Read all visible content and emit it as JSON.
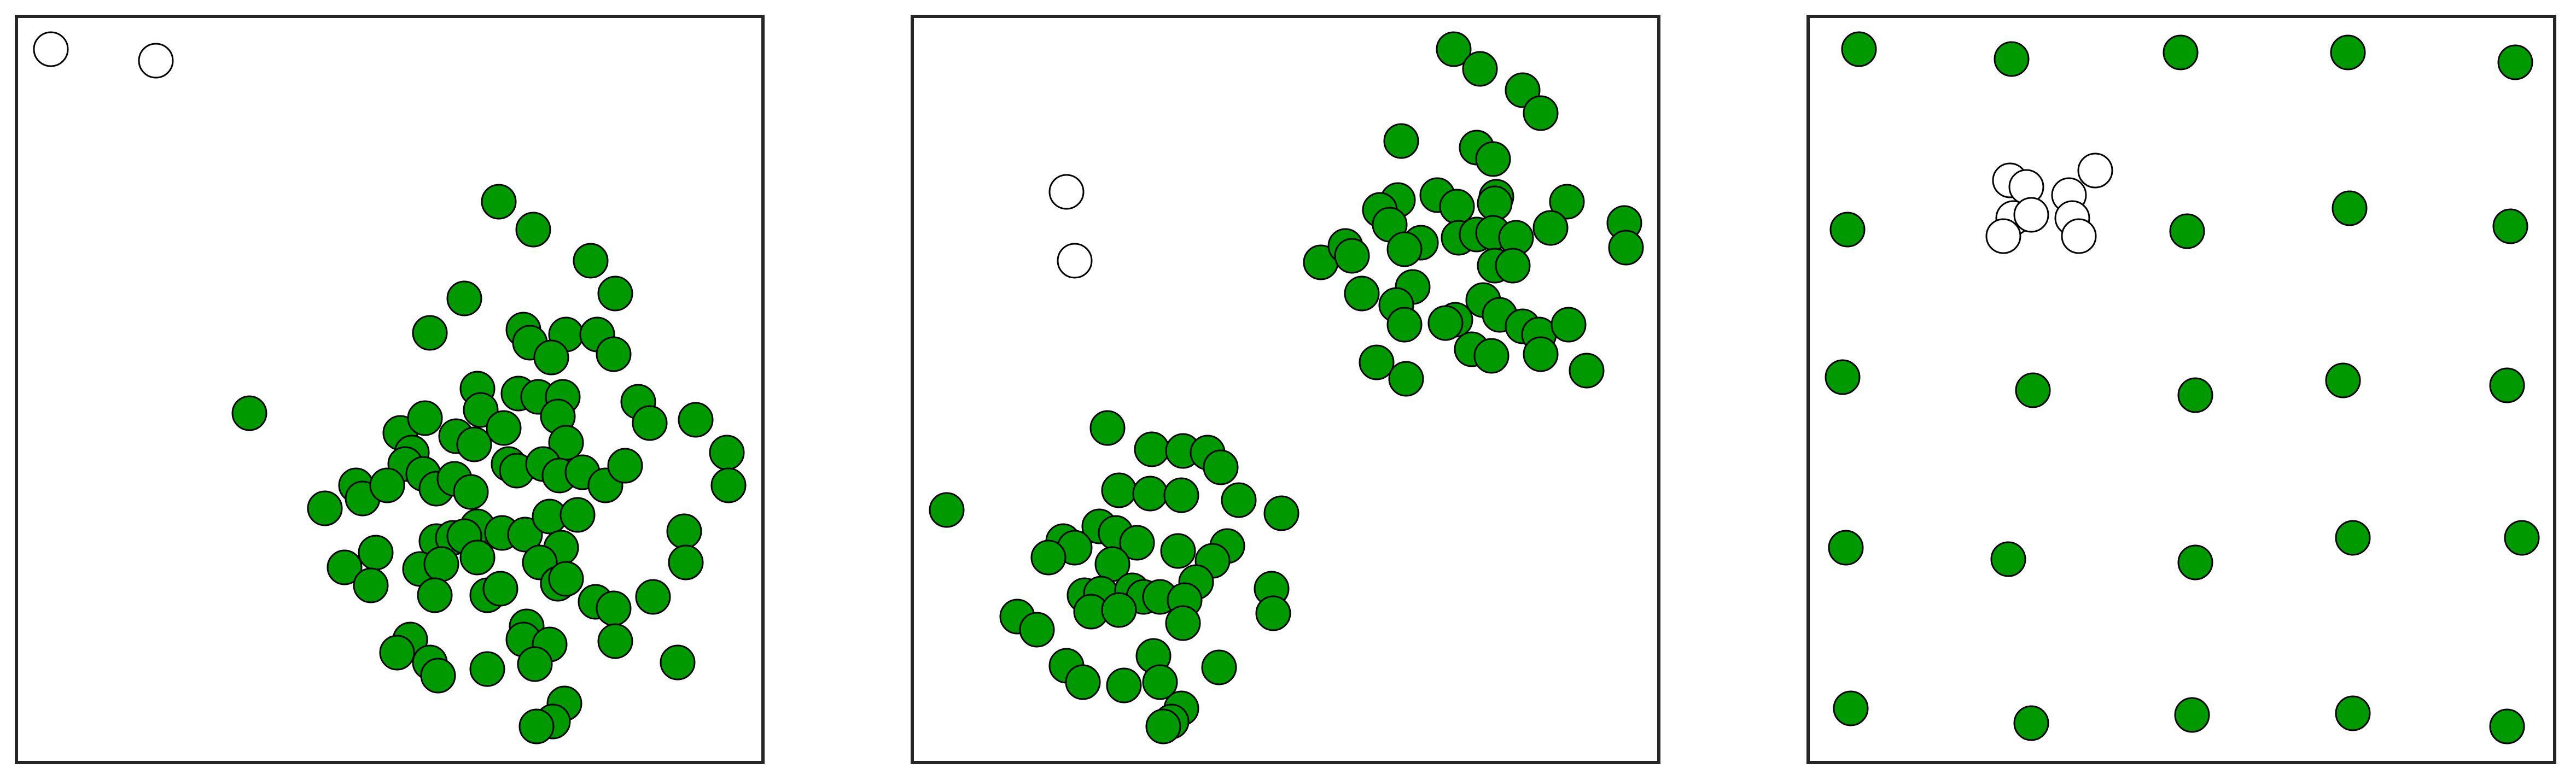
{
  "chart_data": [
    {
      "type": "scatter",
      "xlim": [
        0,
        455
      ],
      "ylim": [
        0,
        455
      ],
      "series": [
        {
          "color": "#ffffff",
          "x": [
            21,
            85
          ],
          "values": [
            435,
            428
          ]
        },
        {
          "color": "#009900",
          "x": [
            294,
            315,
            350,
            365,
            273,
            252,
            309,
            313,
            335,
            354,
            326,
            364,
            142,
            281,
            306,
            318,
            333,
            283,
            330,
            379,
            386,
            414,
            234,
            249,
            268,
            279,
            297,
            335,
            241,
            237,
            248,
            256,
            267,
            277,
            300,
            305,
            321,
            331,
            345,
            359,
            371,
            433,
            434,
            207,
            211,
            226,
            188,
            281,
            296,
            310,
            256,
            266,
            273,
            325,
            342,
            332,
            219,
            200,
            216,
            246,
            259,
            281,
            319,
            255,
            287,
            295,
            330,
            335,
            353,
            364,
            388,
            407,
            408,
            311,
            309,
            325,
            240,
            232,
            252,
            257,
            287,
            316,
            365,
            403,
            334,
            327,
            317
          ],
          "values": [
            342,
            325,
            306,
            286,
            283,
            262,
            264,
            256,
            261,
            261,
            247,
            249,
            213,
            228,
            225,
            223,
            223,
            215,
            211,
            220,
            207,
            209,
            201,
            210,
            199,
            194,
            204,
            195,
            189,
            182,
            176,
            167,
            173,
            165,
            182,
            178,
            182,
            175,
            177,
            169,
            181,
            189,
            169,
            169,
            161,
            169,
            155,
            144,
            140,
            139,
            135,
            137,
            138,
            150,
            151,
            131,
            128,
            119,
            108,
            118,
            121,
            125,
            122,
            102,
            102,
            106,
            109,
            112,
            98,
            94,
            101,
            141,
            122,
            83,
            75,
            72,
            75,
            67,
            61,
            53,
            57,
            60,
            74,
            61,
            36,
            25,
            22
          ]
        }
      ]
    },
    {
      "type": "scatter",
      "xlim": [
        0,
        455
      ],
      "ylim": [
        0,
        455
      ],
      "series": [
        {
          "color": "#ffffff",
          "x": [
            94,
            99
          ],
          "values": [
            348,
            306
          ]
        },
        {
          "color": "#009900",
          "x": [
            330,
            346,
            372,
            383,
            298,
            344,
            354,
            320,
            296,
            332,
            356,
            355,
            399,
            285,
            291,
            333,
            344,
            354,
            368,
            310,
            300,
            389,
            434,
            435,
            249,
            264,
            268,
            355,
            366,
            305,
            274,
            295,
            348,
            358,
            331,
            325,
            300,
            372,
            382,
            400,
            341,
            353,
            383,
            411,
            283,
            301,
            21,
            119,
            146,
            165,
            180,
            188,
            126,
            145,
            164,
            199,
            225,
            114,
            124,
            137,
            92,
            99,
            83,
            122,
            162,
            192,
            183,
            173,
            219,
            220,
            105,
            115,
            134,
            141,
            151,
            166,
            109,
            126,
            165,
            64,
            76,
            147,
            94,
            104,
            129,
            151,
            187,
            164,
            158,
            153
          ],
          "values": [
            435,
            423,
            410,
            396,
            379,
            375,
            368,
            346,
            343,
            339,
            345,
            341,
            342,
            337,
            328,
            320,
            322,
            323,
            320,
            317,
            313,
            326,
            329,
            314,
            305,
            315,
            309,
            303,
            303,
            290,
            286,
            279,
            282,
            273,
            270,
            268,
            267,
            266,
            261,
            267,
            252,
            248,
            249,
            239,
            244,
            234,
            154,
            204,
            191,
            190,
            189,
            180,
            166,
            164,
            163,
            160,
            152,
            144,
            140,
            134,
            135,
            131,
            125,
            121,
            129,
            132,
            123,
            110,
            106,
            91,
            102,
            103,
            105,
            101,
            101,
            99,
            92,
            93,
            85,
            89,
            81,
            65,
            59,
            49,
            47,
            49,
            58,
            33,
            25,
            22
          ]
        }
      ]
    },
    {
      "type": "scatter",
      "xlim": [
        0,
        455
      ],
      "ylim": [
        0,
        455
      ],
      "series": [
        {
          "color": "#009900",
          "x": [
            31,
            124,
            227,
            329,
            431,
            24,
            231,
            330,
            428,
            21,
            137,
            236,
            326,
            426,
            23,
            122,
            236,
            332,
            435,
            26,
            136,
            234,
            332,
            426
          ],
          "values": [
            435,
            429,
            433,
            433,
            427,
            325,
            324,
            338,
            327,
            235,
            227,
            224,
            233,
            230,
            131,
            124,
            122,
            137,
            137,
            33,
            24,
            29,
            30,
            22
          ]
        },
        {
          "color": "#ffffff",
          "x": [
            123,
            133,
            159,
            175,
            125,
            136,
            161,
            119,
            165
          ],
          "values": [
            355,
            351,
            346,
            361,
            332,
            334,
            332,
            321,
            321
          ]
        }
      ]
    }
  ]
}
